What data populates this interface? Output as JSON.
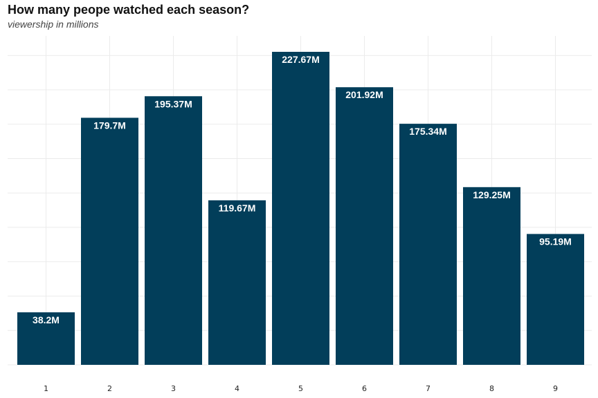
{
  "header": {
    "title": "How many peope watched each season?",
    "subtitle": "viewership in millions"
  },
  "colors": {
    "bar": "#023e5a",
    "grid": "#ebebeb",
    "label": "#ffffff"
  },
  "chart_data": {
    "type": "bar",
    "title": "How many peope watched each season?",
    "subtitle": "viewership in millions",
    "categories": [
      "1",
      "2",
      "3",
      "4",
      "5",
      "6",
      "7",
      "8",
      "9"
    ],
    "values": [
      38.2,
      179.7,
      195.37,
      119.67,
      227.67,
      201.92,
      175.34,
      129.25,
      95.19
    ],
    "labels": [
      "38.2M",
      "179.7M",
      "195.37M",
      "119.67M",
      "227.67M",
      "201.92M",
      "175.34M",
      "129.25M",
      "95.19M"
    ],
    "xlabel": "",
    "ylabel": "",
    "ylim": [
      0,
      240
    ],
    "y_tick_labels_shown": false,
    "grid": true
  }
}
